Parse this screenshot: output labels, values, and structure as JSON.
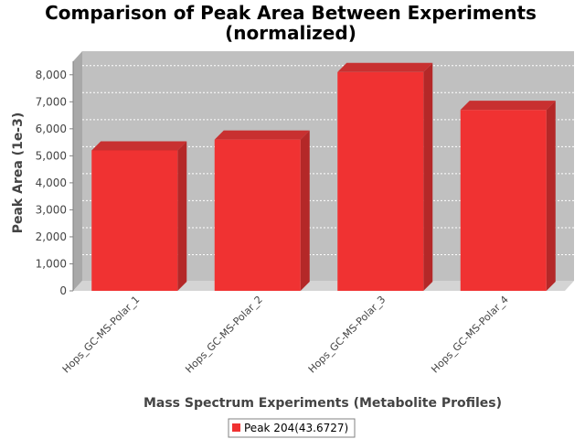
{
  "chart_data": {
    "type": "bar",
    "title": "Comparison of Peak Area Between Experiments",
    "subtitle": "(normalized)",
    "xlabel": "Mass Spectrum Experiments (Metabolite Profiles)",
    "ylabel": "Peak Area (1e-3)",
    "categories": [
      "Hops_GC-MS-Polar_1",
      "Hops_GC-MS-Polar_2",
      "Hops_GC-MS-Polar_3",
      "Hops_GC-MS-Polar_4"
    ],
    "series": [
      {
        "name": "Peak 204(43.6727)",
        "values": [
          5200,
          5600,
          8100,
          6700
        ],
        "color": "#f03232"
      }
    ],
    "ylim": [
      0,
      8500
    ],
    "yticks": [
      0,
      1000,
      2000,
      3000,
      4000,
      5000,
      6000,
      7000,
      8000
    ],
    "ytick_labels": [
      "0",
      "1,000",
      "2,000",
      "3,000",
      "4,000",
      "5,000",
      "6,000",
      "7,000",
      "8,000"
    ],
    "grid": true,
    "legend_position": "bottom",
    "style": "3d",
    "colors": {
      "plot_background": "#c0c0c0",
      "plot_side": "#a8a8a8",
      "plot_floor": "#d4d4d4",
      "grid": "#ffffff",
      "bar_front": "#f03232",
      "bar_side": "#b42828",
      "bar_top": "#c83030"
    }
  }
}
